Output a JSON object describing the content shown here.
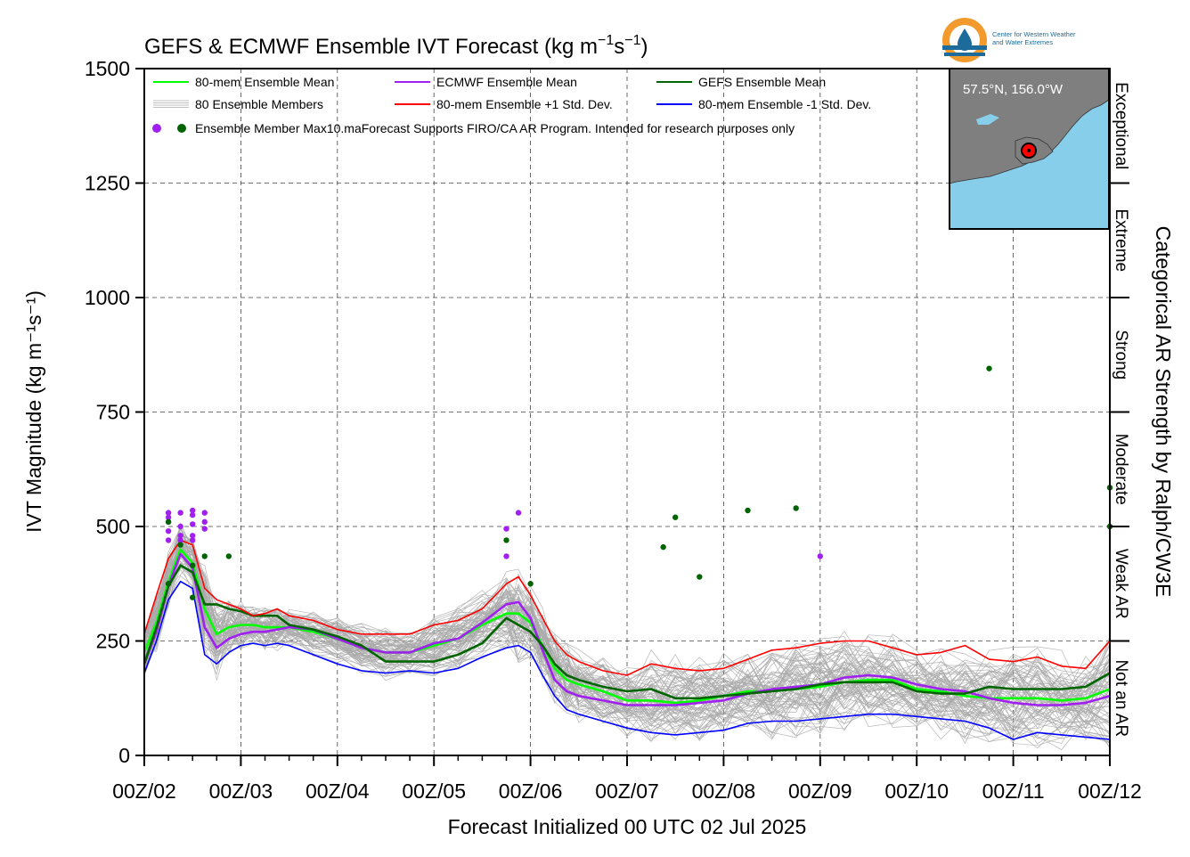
{
  "chart_data": {
    "type": "line",
    "title_main": "GEFS & ECMWF Ensemble IVT Forecast (kg m",
    "title_exp1": "−1",
    "title_mid": "s",
    "title_exp2": "−1",
    "title_end": ")",
    "ylabel": "IVT Magnitude (kg m⁻¹s⁻¹)",
    "xlabel": "Forecast Initialized 00 UTC 02 Jul 2025",
    "right_label": "Categorical AR Strength by Ralph/CW3E",
    "ylim": [
      0,
      1500
    ],
    "yticks": [
      0,
      250,
      500,
      750,
      1000,
      1250,
      1500
    ],
    "xlim": [
      0,
      240
    ],
    "x_units": "forecast hours",
    "xtick_hours": [
      0,
      24,
      48,
      72,
      96,
      120,
      144,
      168,
      192,
      216,
      240
    ],
    "xtick_labels": [
      "00Z/02",
      "00Z/03",
      "00Z/04",
      "00Z/05",
      "00Z/06",
      "00Z/07",
      "00Z/08",
      "00Z/09",
      "00Z/10",
      "00Z/11",
      "00Z/12"
    ],
    "grid": true,
    "categories": [
      {
        "label": "Not an AR",
        "min": 0,
        "max": 250
      },
      {
        "label": "Weak AR",
        "min": 250,
        "max": 500
      },
      {
        "label": "Moderate",
        "min": 500,
        "max": 750
      },
      {
        "label": "Strong",
        "min": 750,
        "max": 1000
      },
      {
        "label": "Extreme",
        "min": 1000,
        "max": 1250
      },
      {
        "label": "Exceptional",
        "min": 1250,
        "max": 1500
      }
    ],
    "legend": {
      "placement": "top-left",
      "items": [
        {
          "label": "80-mem Ensemble Mean",
          "color": "#00ff00"
        },
        {
          "label": "ECMWF Ensemble Mean",
          "color": "#a020f0"
        },
        {
          "label": "GEFS Ensemble Mean",
          "color": "#006400"
        },
        {
          "label": "80 Ensemble Members",
          "color": "#aaaaaa"
        },
        {
          "label": "80-mem Ensemble +1 Std. Dev.",
          "color": "#ff0000"
        },
        {
          "label": "80-mem Ensemble -1 Std. Dev.",
          "color": "#0000ff"
        }
      ],
      "dots_label": "Ensemble Member Max10.maForecast Supports FIRO/CA AR Program. Intended for research purposes only"
    },
    "series": [
      {
        "name": "80-mem Ensemble Mean",
        "color": "#00ff00",
        "x": [
          0,
          3,
          6,
          9,
          12,
          15,
          18,
          21,
          24,
          27,
          30,
          33,
          36,
          42,
          48,
          54,
          60,
          66,
          72,
          78,
          84,
          90,
          93,
          96,
          99,
          102,
          105,
          108,
          114,
          120,
          126,
          132,
          138,
          144,
          150,
          156,
          162,
          168,
          174,
          180,
          186,
          192,
          198,
          204,
          210,
          216,
          222,
          228,
          234,
          240
        ],
        "y": [
          225,
          290,
          380,
          450,
          420,
          320,
          265,
          280,
          285,
          285,
          280,
          280,
          280,
          270,
          255,
          235,
          225,
          225,
          240,
          255,
          285,
          310,
          310,
          290,
          240,
          190,
          165,
          155,
          140,
          120,
          120,
          115,
          120,
          130,
          140,
          140,
          145,
          150,
          160,
          165,
          165,
          145,
          140,
          130,
          125,
          125,
          125,
          120,
          125,
          145
        ]
      },
      {
        "name": "ECMWF Ensemble Mean",
        "color": "#a020f0",
        "x": [
          0,
          3,
          6,
          9,
          12,
          15,
          18,
          21,
          24,
          27,
          30,
          33,
          36,
          42,
          48,
          54,
          60,
          66,
          72,
          78,
          84,
          90,
          93,
          96,
          99,
          102,
          105,
          108,
          114,
          120,
          126,
          132,
          138,
          144,
          150,
          156,
          162,
          168,
          174,
          180,
          186,
          192,
          198,
          204,
          210,
          216,
          222,
          228,
          234,
          240
        ],
        "y": [
          200,
          270,
          370,
          440,
          410,
          280,
          235,
          255,
          265,
          270,
          270,
          275,
          280,
          275,
          255,
          235,
          225,
          225,
          245,
          255,
          290,
          330,
          335,
          300,
          230,
          165,
          140,
          130,
          120,
          110,
          110,
          110,
          115,
          120,
          135,
          145,
          150,
          155,
          170,
          175,
          170,
          155,
          145,
          140,
          125,
          115,
          110,
          110,
          115,
          130
        ]
      },
      {
        "name": "GEFS Ensemble Mean",
        "color": "#006400",
        "x": [
          0,
          3,
          6,
          9,
          12,
          15,
          18,
          21,
          24,
          27,
          30,
          33,
          36,
          42,
          48,
          54,
          60,
          66,
          72,
          78,
          84,
          90,
          93,
          96,
          99,
          102,
          105,
          108,
          114,
          120,
          126,
          132,
          138,
          144,
          150,
          156,
          162,
          168,
          174,
          180,
          186,
          192,
          198,
          204,
          210,
          216,
          222,
          228,
          234,
          240
        ],
        "y": [
          200,
          280,
          370,
          415,
          400,
          330,
          330,
          320,
          315,
          305,
          305,
          305,
          285,
          275,
          260,
          240,
          205,
          205,
          205,
          220,
          245,
          300,
          285,
          270,
          240,
          200,
          175,
          165,
          150,
          140,
          145,
          125,
          125,
          130,
          135,
          140,
          145,
          155,
          160,
          160,
          160,
          140,
          135,
          135,
          150,
          145,
          145,
          145,
          150,
          180
        ]
      },
      {
        "name": "80-mem Ensemble +1 Std. Dev.",
        "color": "#ff0000",
        "x": [
          0,
          3,
          6,
          9,
          12,
          15,
          18,
          21,
          24,
          27,
          30,
          33,
          36,
          42,
          48,
          54,
          60,
          66,
          72,
          78,
          84,
          90,
          93,
          96,
          99,
          102,
          105,
          108,
          114,
          120,
          126,
          132,
          138,
          144,
          150,
          156,
          162,
          168,
          174,
          180,
          186,
          192,
          198,
          204,
          210,
          216,
          222,
          228,
          234,
          240
        ],
        "y": [
          265,
          350,
          430,
          470,
          460,
          365,
          340,
          330,
          320,
          305,
          310,
          320,
          305,
          295,
          275,
          265,
          265,
          265,
          285,
          295,
          320,
          375,
          390,
          350,
          300,
          250,
          220,
          205,
          185,
          175,
          200,
          190,
          185,
          190,
          210,
          230,
          235,
          245,
          250,
          250,
          235,
          220,
          225,
          240,
          210,
          205,
          215,
          195,
          190,
          250
        ]
      },
      {
        "name": "80-mem Ensemble -1 Std. Dev.",
        "color": "#0000ff",
        "x": [
          0,
          3,
          6,
          9,
          12,
          15,
          18,
          21,
          24,
          27,
          30,
          33,
          36,
          42,
          48,
          54,
          60,
          66,
          72,
          78,
          84,
          90,
          93,
          96,
          99,
          102,
          105,
          108,
          114,
          120,
          126,
          132,
          138,
          144,
          150,
          156,
          162,
          168,
          174,
          180,
          186,
          192,
          198,
          204,
          210,
          216,
          222,
          228,
          234,
          240
        ],
        "y": [
          180,
          250,
          340,
          380,
          365,
          220,
          200,
          225,
          240,
          245,
          240,
          245,
          240,
          220,
          200,
          185,
          180,
          185,
          180,
          190,
          215,
          235,
          240,
          225,
          175,
          130,
          100,
          90,
          75,
          60,
          50,
          45,
          50,
          55,
          70,
          75,
          75,
          80,
          85,
          90,
          90,
          85,
          80,
          75,
          60,
          35,
          50,
          45,
          40,
          35
        ]
      }
    ],
    "member_max_points": {
      "ecmwf_color": "#a020f0",
      "gefs_color": "#006400",
      "ecmwf": [
        [
          6,
          530
        ],
        [
          6,
          520
        ],
        [
          6,
          510
        ],
        [
          6,
          490
        ],
        [
          6,
          470
        ],
        [
          9,
          530
        ],
        [
          9,
          500
        ],
        [
          9,
          480
        ],
        [
          9,
          470
        ],
        [
          12,
          535
        ],
        [
          12,
          525
        ],
        [
          12,
          505
        ],
        [
          12,
          480
        ],
        [
          12,
          470
        ],
        [
          15,
          530
        ],
        [
          15,
          510
        ],
        [
          15,
          495
        ],
        [
          90,
          495
        ],
        [
          90,
          435
        ],
        [
          93,
          530
        ],
        [
          168,
          435
        ]
      ],
      "gefs": [
        [
          6,
          510
        ],
        [
          6,
          375
        ],
        [
          9,
          460
        ],
        [
          12,
          415
        ],
        [
          12,
          345
        ],
        [
          15,
          435
        ],
        [
          21,
          435
        ],
        [
          90,
          470
        ],
        [
          96,
          375
        ],
        [
          129,
          455
        ],
        [
          132,
          520
        ],
        [
          138,
          390
        ],
        [
          150,
          535
        ],
        [
          162,
          540
        ],
        [
          210,
          845
        ],
        [
          240,
          585
        ],
        [
          240,
          500
        ]
      ]
    },
    "map_inset": {
      "location_label": "57.5°N, 156.0°W",
      "logo_line1": "Center for Western Weather",
      "logo_line2": "and Water Extremes"
    }
  }
}
